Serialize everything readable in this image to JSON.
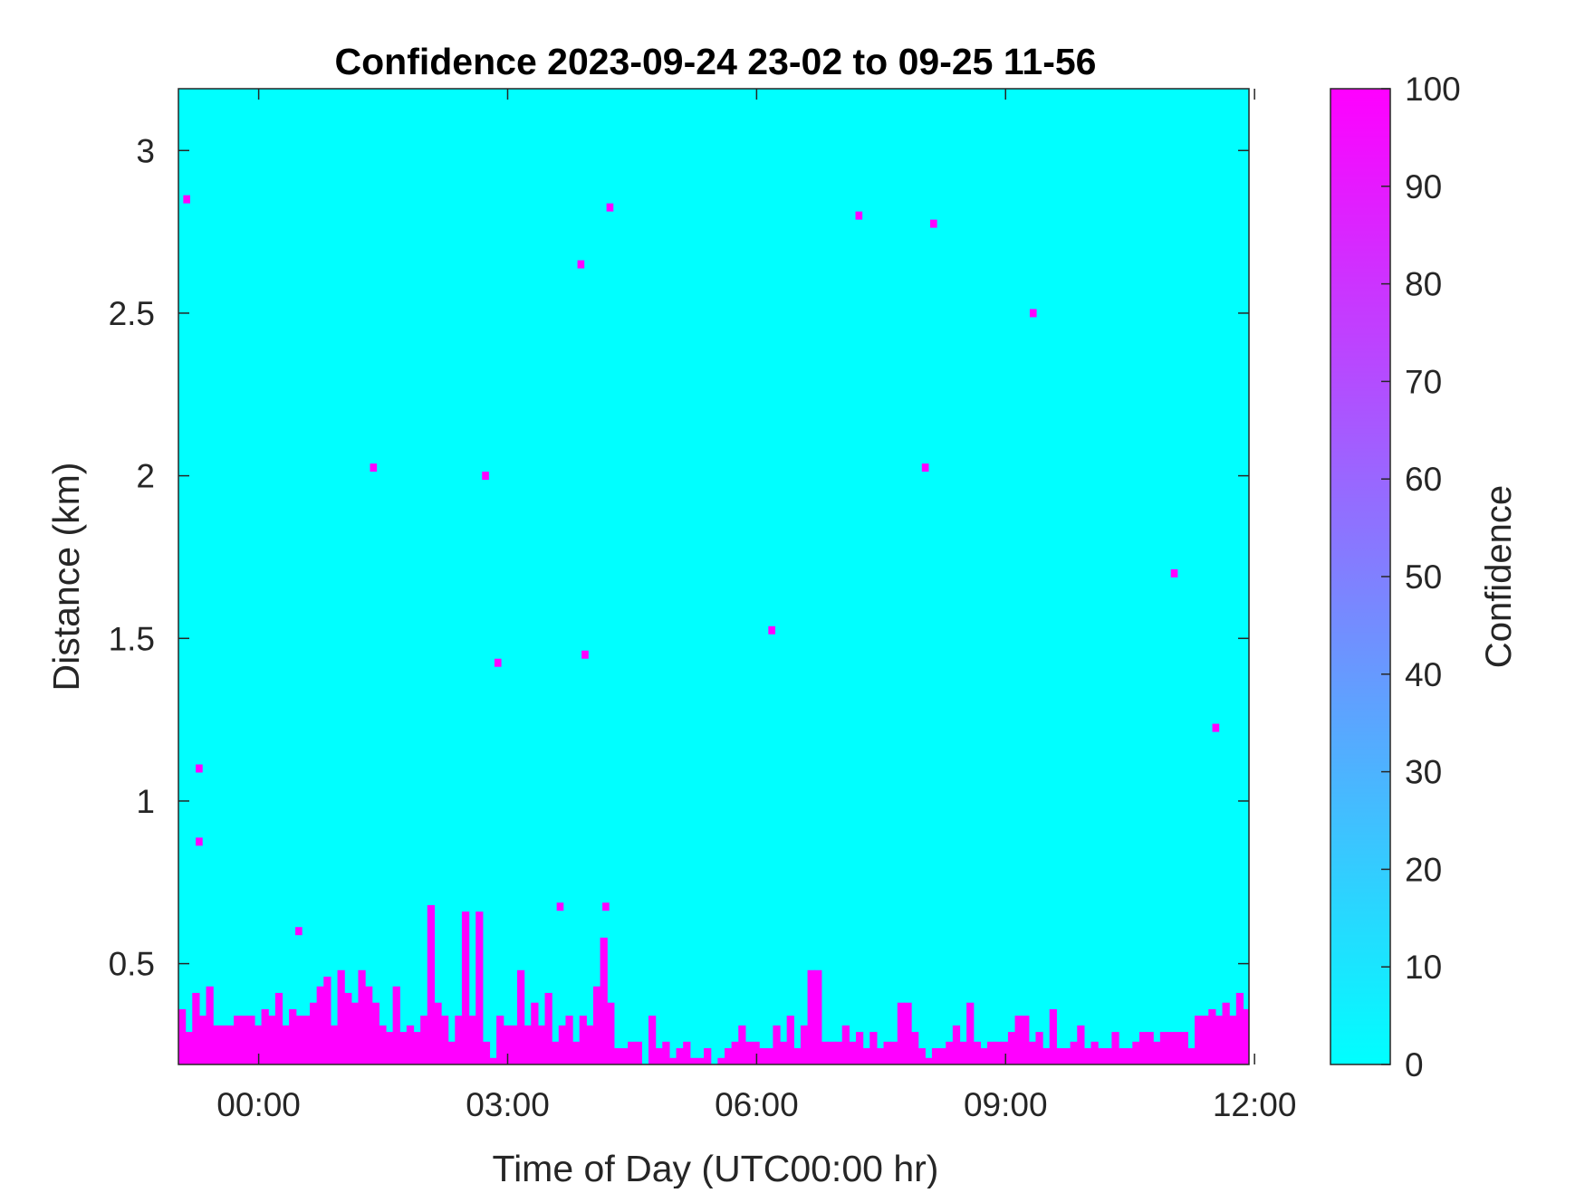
{
  "chart_data": {
    "type": "heatmap",
    "title": "Confidence 2023-09-24 23-02 to 09-25 11-56",
    "xlabel": "Time of Day (UTC00:00 hr)",
    "ylabel": "Distance (km)",
    "colorbar_label": "Confidence",
    "xlim": [
      -0.967,
      11.933
    ],
    "ylim": [
      0.19,
      3.19
    ],
    "x_ticks": [
      0,
      3,
      6,
      9,
      12
    ],
    "x_tick_labels": [
      "00:00",
      "03:00",
      "06:00",
      "09:00",
      "12:00"
    ],
    "y_ticks": [
      0.5,
      1,
      1.5,
      2,
      2.5,
      3
    ],
    "y_tick_labels": [
      "0.5",
      "1",
      "1.5",
      "2",
      "2.5",
      "3"
    ],
    "color_range": [
      0,
      100
    ],
    "colorbar_ticks": [
      0,
      10,
      20,
      30,
      40,
      50,
      60,
      70,
      80,
      90,
      100
    ],
    "colorbar_tick_labels": [
      "0",
      "10",
      "20",
      "30",
      "40",
      "50",
      "60",
      "70",
      "80",
      "90",
      "100"
    ],
    "colormap": {
      "low": "#00FFFF",
      "high": "#FF00FF"
    },
    "background_value": 0,
    "time_bin_hours": 0.0833,
    "range_bin_km": 0.025,
    "low_layer": {
      "value": 100,
      "x_start": -0.967,
      "top_heights_km": [
        0.36,
        0.29,
        0.41,
        0.34,
        0.43,
        0.31,
        0.31,
        0.31,
        0.34,
        0.34,
        0.34,
        0.31,
        0.36,
        0.34,
        0.41,
        0.31,
        0.36,
        0.34,
        0.34,
        0.38,
        0.43,
        0.46,
        0.31,
        0.48,
        0.41,
        0.38,
        0.48,
        0.43,
        0.38,
        0.31,
        0.29,
        0.43,
        0.29,
        0.31,
        0.29,
        0.34,
        0.68,
        0.38,
        0.34,
        0.26,
        0.34,
        0.66,
        0.34,
        0.66,
        0.26,
        0.21,
        0.34,
        0.31,
        0.31,
        0.48,
        0.31,
        0.38,
        0.31,
        0.41,
        0.26,
        0.31,
        0.34,
        0.26,
        0.34,
        0.31,
        0.43,
        0.58,
        0.38,
        0.24,
        0.24,
        0.26,
        0.26,
        0.19,
        0.34,
        0.24,
        0.26,
        0.21,
        0.24,
        0.26,
        0.21,
        0.21,
        0.24,
        0.19,
        0.21,
        0.24,
        0.26,
        0.31,
        0.26,
        0.26,
        0.24,
        0.24,
        0.31,
        0.26,
        0.34,
        0.24,
        0.31,
        0.48,
        0.48,
        0.26,
        0.26,
        0.26,
        0.31,
        0.26,
        0.29,
        0.24,
        0.29,
        0.24,
        0.26,
        0.26,
        0.38,
        0.38,
        0.29,
        0.24,
        0.21,
        0.24,
        0.24,
        0.26,
        0.31,
        0.26,
        0.38,
        0.26,
        0.24,
        0.26,
        0.26,
        0.26,
        0.29,
        0.34,
        0.34,
        0.26,
        0.29,
        0.24,
        0.36,
        0.24,
        0.24,
        0.26,
        0.31,
        0.24,
        0.26,
        0.24,
        0.24,
        0.29,
        0.24,
        0.24,
        0.26,
        0.29,
        0.29,
        0.26,
        0.29,
        0.29,
        0.29,
        0.29,
        0.24,
        0.34,
        0.34,
        0.36,
        0.34,
        0.38,
        0.34,
        0.41,
        0.36,
        0.38,
        0.34,
        0.36,
        0.34,
        0.34,
        0.26,
        0.31,
        0.31,
        0.31,
        0.36,
        0.34,
        0.31,
        0.41,
        0.39,
        0.36,
        0.24,
        0.29
      ]
    },
    "isolated_points": [
      {
        "x": -0.867,
        "y": 2.85,
        "value": 100
      },
      {
        "x": -0.717,
        "y": 1.1,
        "value": 100
      },
      {
        "x": -0.717,
        "y": 0.875,
        "value": 100
      },
      {
        "x": 0.483,
        "y": 0.6,
        "value": 100
      },
      {
        "x": 1.383,
        "y": 2.025,
        "value": 100
      },
      {
        "x": 2.733,
        "y": 2.0,
        "value": 100
      },
      {
        "x": 2.883,
        "y": 1.425,
        "value": 100
      },
      {
        "x": 3.633,
        "y": 0.675,
        "value": 100
      },
      {
        "x": 3.883,
        "y": 2.65,
        "value": 100
      },
      {
        "x": 3.933,
        "y": 1.45,
        "value": 100
      },
      {
        "x": 4.183,
        "y": 0.675,
        "value": 100
      },
      {
        "x": 4.233,
        "y": 2.825,
        "value": 100
      },
      {
        "x": 6.183,
        "y": 1.525,
        "value": 100
      },
      {
        "x": 7.233,
        "y": 2.8,
        "value": 100
      },
      {
        "x": 8.033,
        "y": 2.025,
        "value": 100
      },
      {
        "x": 8.133,
        "y": 2.775,
        "value": 100
      },
      {
        "x": 9.333,
        "y": 2.5,
        "value": 100
      },
      {
        "x": 11.033,
        "y": 1.7,
        "value": 100
      },
      {
        "x": 11.533,
        "y": 1.225,
        "value": 100
      }
    ]
  }
}
